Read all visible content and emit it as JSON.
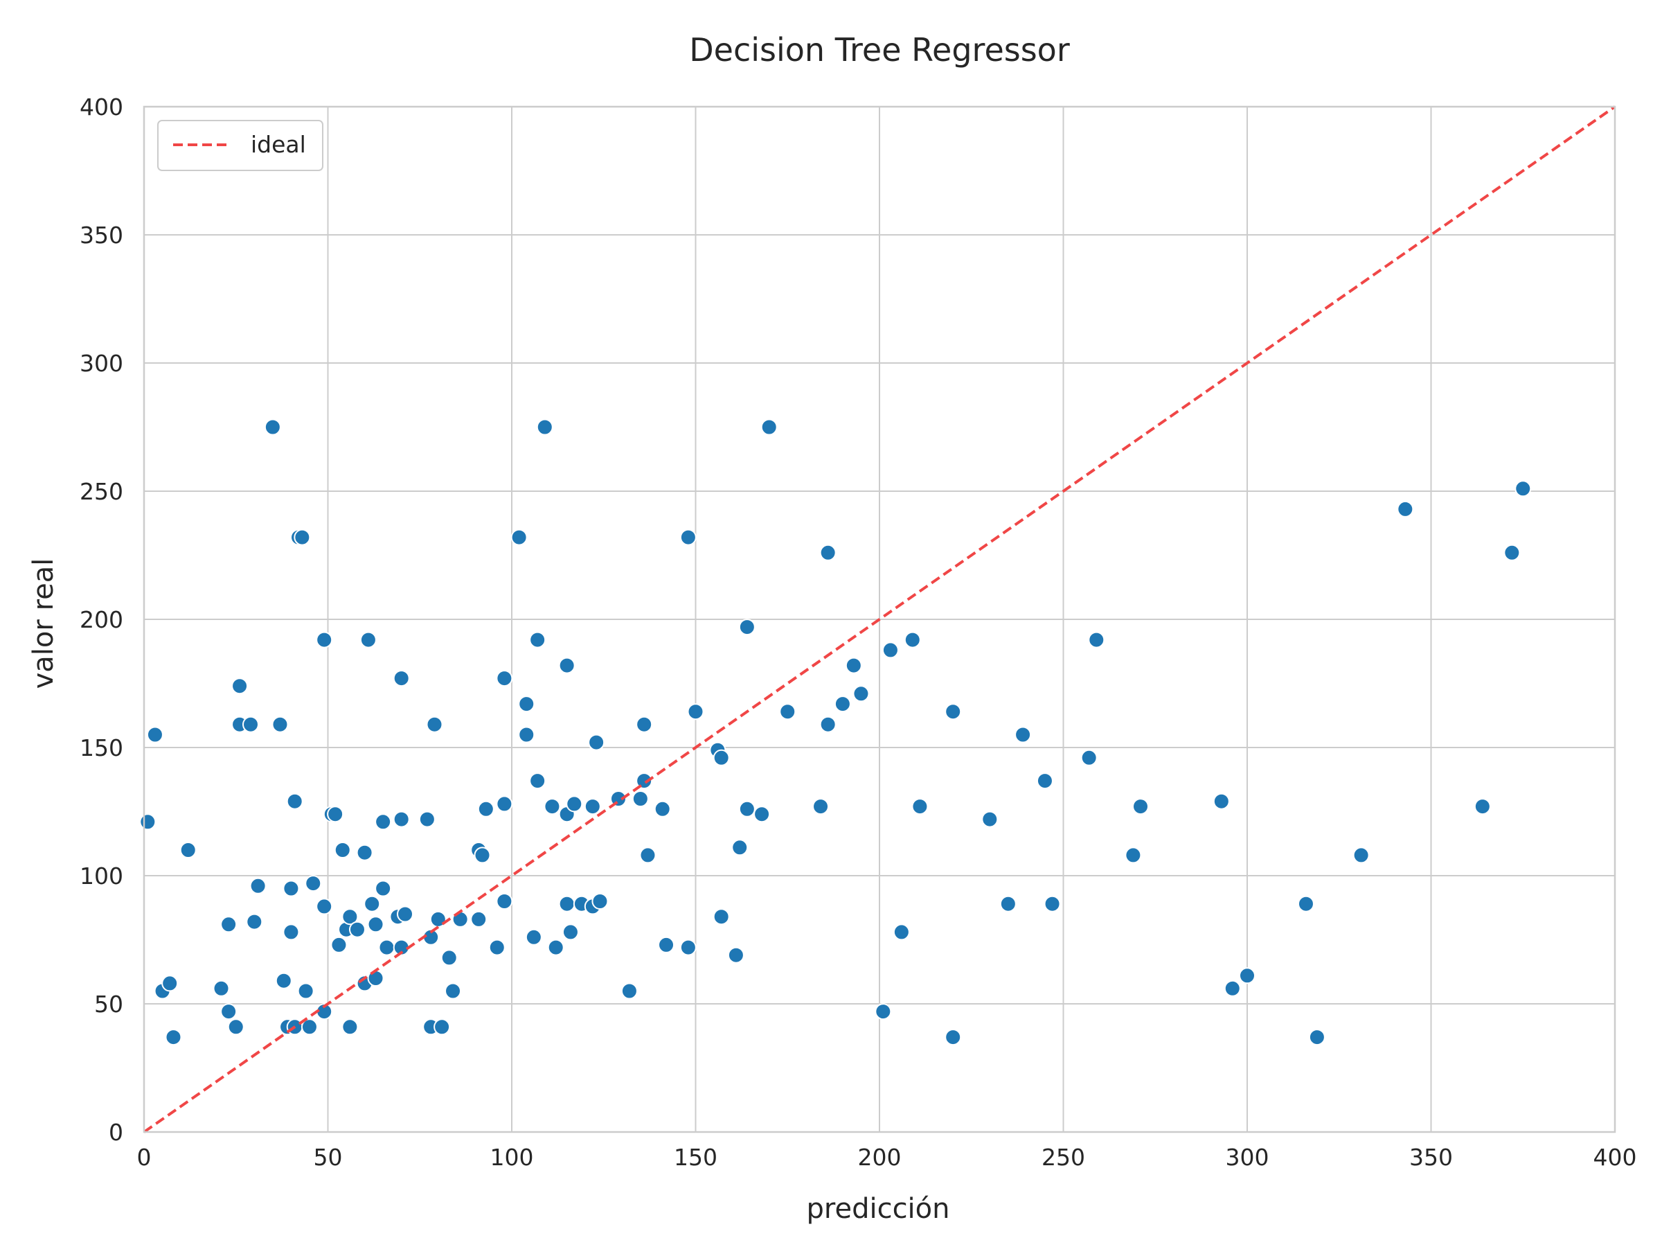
{
  "chart_data": {
    "type": "scatter",
    "title": "Decision Tree Regressor",
    "xlabel": "predicción",
    "ylabel": "valor real",
    "xlim": [
      0,
      400
    ],
    "ylim": [
      0,
      400
    ],
    "xticks": [
      "0",
      "50",
      "100",
      "150",
      "200",
      "250",
      "300",
      "350",
      "400"
    ],
    "yticks": [
      "0",
      "50",
      "100",
      "150",
      "200",
      "250",
      "300",
      "350",
      "400"
    ],
    "grid": true,
    "legend": {
      "placement": "top-left",
      "entries": [
        "ideal"
      ]
    },
    "colors": {
      "points": "#1f77b4",
      "ideal_line": "#f04646",
      "grid": "#cccccc"
    },
    "series": [
      {
        "type": "scatter",
        "values": [
          [
            1,
            121
          ],
          [
            3,
            155
          ],
          [
            5,
            55
          ],
          [
            7,
            58
          ],
          [
            8,
            37
          ],
          [
            12,
            110
          ],
          [
            21,
            56
          ],
          [
            23,
            81
          ],
          [
            23,
            47
          ],
          [
            25,
            41
          ],
          [
            26,
            174
          ],
          [
            26,
            159
          ],
          [
            29,
            159
          ],
          [
            30,
            82
          ],
          [
            31,
            96
          ],
          [
            35,
            275
          ],
          [
            37,
            159
          ],
          [
            38,
            59
          ],
          [
            39,
            41
          ],
          [
            40,
            95
          ],
          [
            40,
            78
          ],
          [
            41,
            129
          ],
          [
            41,
            41
          ],
          [
            42,
            232
          ],
          [
            43,
            232
          ],
          [
            44,
            55
          ],
          [
            45,
            41
          ],
          [
            46,
            97
          ],
          [
            49,
            192
          ],
          [
            49,
            88
          ],
          [
            49,
            47
          ],
          [
            51,
            124
          ],
          [
            52,
            124
          ],
          [
            53,
            73
          ],
          [
            54,
            110
          ],
          [
            55,
            79
          ],
          [
            56,
            84
          ],
          [
            56,
            41
          ],
          [
            58,
            79
          ],
          [
            60,
            58
          ],
          [
            60,
            109
          ],
          [
            61,
            192
          ],
          [
            62,
            89
          ],
          [
            63,
            81
          ],
          [
            63,
            60
          ],
          [
            65,
            121
          ],
          [
            65,
            95
          ],
          [
            66,
            72
          ],
          [
            69,
            84
          ],
          [
            70,
            122
          ],
          [
            70,
            177
          ],
          [
            70,
            72
          ],
          [
            71,
            85
          ],
          [
            77,
            122
          ],
          [
            78,
            76
          ],
          [
            78,
            41
          ],
          [
            79,
            159
          ],
          [
            80,
            83
          ],
          [
            81,
            41
          ],
          [
            83,
            68
          ],
          [
            84,
            55
          ],
          [
            86,
            83
          ],
          [
            91,
            110
          ],
          [
            91,
            83
          ],
          [
            92,
            108
          ],
          [
            93,
            126
          ],
          [
            96,
            72
          ],
          [
            98,
            128
          ],
          [
            98,
            177
          ],
          [
            98,
            90
          ],
          [
            102,
            232
          ],
          [
            104,
            167
          ],
          [
            104,
            155
          ],
          [
            106,
            76
          ],
          [
            107,
            137
          ],
          [
            107,
            192
          ],
          [
            109,
            275
          ],
          [
            111,
            127
          ],
          [
            112,
            72
          ],
          [
            115,
            124
          ],
          [
            115,
            182
          ],
          [
            115,
            89
          ],
          [
            116,
            78
          ],
          [
            117,
            128
          ],
          [
            119,
            89
          ],
          [
            122,
            127
          ],
          [
            122,
            88
          ],
          [
            123,
            152
          ],
          [
            124,
            90
          ],
          [
            129,
            130
          ],
          [
            132,
            55
          ],
          [
            135,
            130
          ],
          [
            136,
            137
          ],
          [
            136,
            159
          ],
          [
            137,
            108
          ],
          [
            141,
            126
          ],
          [
            142,
            73
          ],
          [
            148,
            72
          ],
          [
            148,
            232
          ],
          [
            150,
            164
          ],
          [
            156,
            149
          ],
          [
            157,
            146
          ],
          [
            157,
            84
          ],
          [
            161,
            69
          ],
          [
            162,
            111
          ],
          [
            164,
            126
          ],
          [
            164,
            197
          ],
          [
            168,
            124
          ],
          [
            170,
            275
          ],
          [
            175,
            164
          ],
          [
            184,
            127
          ],
          [
            186,
            226
          ],
          [
            186,
            159
          ],
          [
            190,
            167
          ],
          [
            193,
            182
          ],
          [
            195,
            171
          ],
          [
            201,
            47
          ],
          [
            203,
            188
          ],
          [
            206,
            78
          ],
          [
            209,
            192
          ],
          [
            211,
            127
          ],
          [
            220,
            164
          ],
          [
            220,
            37
          ],
          [
            230,
            122
          ],
          [
            235,
            89
          ],
          [
            239,
            155
          ],
          [
            245,
            137
          ],
          [
            247,
            89
          ],
          [
            257,
            146
          ],
          [
            259,
            192
          ],
          [
            269,
            108
          ],
          [
            271,
            127
          ],
          [
            293,
            129
          ],
          [
            296,
            56
          ],
          [
            300,
            61
          ],
          [
            316,
            89
          ],
          [
            319,
            37
          ],
          [
            331,
            108
          ],
          [
            343,
            243
          ],
          [
            364,
            127
          ],
          [
            372,
            226
          ],
          [
            375,
            251
          ]
        ]
      },
      {
        "type": "line",
        "name": "ideal",
        "values": [
          [
            0,
            0
          ],
          [
            400,
            400
          ]
        ]
      }
    ]
  }
}
